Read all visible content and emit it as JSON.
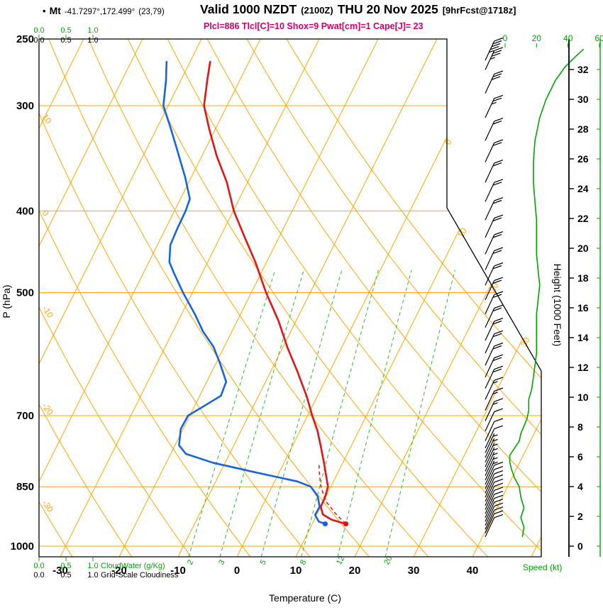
{
  "header": {
    "bullet": "•",
    "station": "Mt",
    "coords": "-41.7297°,172.499°",
    "grid": "(23,79)",
    "valid_main1": "Valid 1000 NZDT",
    "valid_zulu": "(2100Z)",
    "valid_main2": "THU 20 Nov 2025",
    "valid_fcst": "[9hrFcst@1718z]",
    "indices_line": "Plcl=886 Tlcl[C]=10 Shox=9 Pwat[cm]=1 Cape[J]= 23"
  },
  "axes": {
    "pressure": {
      "title": "P (hPa)",
      "ticks": [
        "250",
        "300",
        "400",
        "500",
        "700",
        "850",
        "1000"
      ]
    },
    "temperature": {
      "title": "Temperature (C)",
      "ticks": [
        "-30",
        "-20",
        "-10",
        "0",
        "10",
        "20",
        "30",
        "40"
      ]
    },
    "height": {
      "title": "Height (1000 Feet)",
      "ticks": [
        "0",
        "2",
        "4",
        "6",
        "8",
        "10",
        "12",
        "14",
        "16",
        "18",
        "20",
        "22",
        "24",
        "26",
        "28",
        "30",
        "32"
      ]
    },
    "speed": {
      "title": "Speed (kt)",
      "ticks": [
        "0",
        "20",
        "40",
        "60"
      ]
    },
    "cloudwater": {
      "title": "CloudWater (g/Kg)",
      "ticks": [
        "0.0",
        "0.5",
        "1.0"
      ]
    },
    "gridscale": {
      "title": "Grid-Scale Cloudiness",
      "ticks": [
        "0.0",
        "0.5",
        "1.0"
      ]
    }
  },
  "grid_labels": {
    "adiabats_left": [
      "10",
      "0",
      "-10",
      "-20",
      "-30"
    ],
    "isotherms_right": [
      "0",
      "10",
      "20",
      "30"
    ],
    "mixing_ratio": [
      "2",
      "3",
      "5",
      "8",
      "12",
      "20"
    ]
  },
  "colors": {
    "grid_orange": "#ffa500",
    "green": "#00a400",
    "mixing_green": "#2eb82e",
    "temperature_red": "#e31414",
    "dewpoint_blue": "#1565e0",
    "indices_magenta": "#cc0066",
    "black": "#000000"
  },
  "chart_data": {
    "type": "skewt-sounding",
    "station": "Mt -41.7297°,172.499° (23,79)",
    "valid": "Valid 1000 NZDT (2100Z) THU 20 Nov 2025 [9hrFcst@1718z]",
    "indices": {
      "Plcl_hPa": 886,
      "Tlcl_C": 10,
      "Showalter": 9,
      "Pwat_cm": 1,
      "Cape_J": 23
    },
    "pressure_top_hPa": 250,
    "pressure_bottom_hPa": 1030,
    "temp_axis_range_C": [
      -30,
      40
    ],
    "height_axis_range_kft": [
      0,
      32
    ],
    "speed_axis_range_kt": [
      0,
      60
    ],
    "temperature_profile": [
      [
        266,
        -46.6
      ],
      [
        280,
        -45.5
      ],
      [
        300,
        -43.9
      ],
      [
        320,
        -41.0
      ],
      [
        344,
        -37.5
      ],
      [
        370,
        -33.5
      ],
      [
        400,
        -29.9
      ],
      [
        430,
        -25.8
      ],
      [
        460,
        -21.9
      ],
      [
        500,
        -17.5
      ],
      [
        540,
        -13.0
      ],
      [
        581,
        -9.2
      ],
      [
        620,
        -5.5
      ],
      [
        665,
        -1.7
      ],
      [
        700,
        0.8
      ],
      [
        730,
        3.0
      ],
      [
        762,
        4.9
      ],
      [
        800,
        7.0
      ],
      [
        850,
        9.5
      ],
      [
        875,
        9.9
      ],
      [
        898,
        10.0
      ],
      [
        917,
        11.0
      ],
      [
        930,
        12.9
      ],
      [
        941,
        15.7
      ]
    ],
    "dewpoint_profile": [
      [
        266,
        -54.0
      ],
      [
        280,
        -52.5
      ],
      [
        300,
        -50.8
      ],
      [
        320,
        -47.5
      ],
      [
        340,
        -44.5
      ],
      [
        365,
        -41.0
      ],
      [
        387,
        -38.4
      ],
      [
        400,
        -38.1
      ],
      [
        420,
        -38.0
      ],
      [
        439,
        -37.8
      ],
      [
        460,
        -36.5
      ],
      [
        474,
        -34.8
      ],
      [
        500,
        -31.6
      ],
      [
        530,
        -27.8
      ],
      [
        556,
        -24.9
      ],
      [
        580,
        -21.8
      ],
      [
        608,
        -19.2
      ],
      [
        638,
        -16.7
      ],
      [
        663,
        -16.4
      ],
      [
        679,
        -18.1
      ],
      [
        700,
        -20.3
      ],
      [
        726,
        -20.4
      ],
      [
        759,
        -19.3
      ],
      [
        777,
        -17.4
      ],
      [
        796,
        -12.1
      ],
      [
        817,
        -4.1
      ],
      [
        838,
        3.9
      ],
      [
        850,
        6.6
      ],
      [
        873,
        8.6
      ],
      [
        898,
        9.8
      ],
      [
        918,
        9.7
      ],
      [
        935,
        10.9
      ],
      [
        941,
        12.2
      ]
    ],
    "parcel_path": [
      [
        941,
        15.7
      ],
      [
        928,
        14.4
      ],
      [
        914,
        13.0
      ],
      [
        900,
        11.8
      ],
      [
        886,
        10.5
      ],
      [
        872,
        9.6
      ],
      [
        858,
        8.8
      ],
      [
        844,
        8.0
      ],
      [
        830,
        7.4
      ],
      [
        815,
        6.7
      ],
      [
        800,
        6.1
      ]
    ],
    "wind_barbs": [
      [
        265,
        45
      ],
      [
        272,
        35
      ],
      [
        290,
        30
      ],
      [
        310,
        25
      ],
      [
        330,
        20
      ],
      [
        350,
        18
      ],
      [
        370,
        18
      ],
      [
        390,
        18
      ],
      [
        410,
        20
      ],
      [
        430,
        20
      ],
      [
        450,
        20
      ],
      [
        470,
        20
      ],
      [
        490,
        22
      ],
      [
        510,
        20
      ],
      [
        530,
        20
      ],
      [
        550,
        20
      ],
      [
        570,
        20
      ],
      [
        590,
        20
      ],
      [
        610,
        20
      ],
      [
        630,
        18
      ],
      [
        650,
        18
      ],
      [
        670,
        15
      ],
      [
        690,
        15
      ],
      [
        710,
        15
      ],
      [
        730,
        12
      ],
      [
        750,
        10
      ],
      [
        765,
        8
      ],
      [
        775,
        5
      ],
      [
        785,
        5
      ],
      [
        795,
        5
      ],
      [
        805,
        5
      ],
      [
        815,
        5
      ],
      [
        825,
        5
      ],
      [
        835,
        5
      ],
      [
        845,
        8
      ],
      [
        855,
        8
      ],
      [
        865,
        8
      ],
      [
        875,
        10
      ],
      [
        885,
        10
      ],
      [
        895,
        12
      ],
      [
        905,
        12
      ],
      [
        915,
        10
      ],
      [
        925,
        10
      ],
      [
        935,
        10
      ],
      [
        945,
        12
      ],
      [
        955,
        12
      ],
      [
        965,
        12
      ],
      [
        975,
        10
      ]
    ],
    "speed_profile": [
      [
        975,
        11
      ],
      [
        950,
        12
      ],
      [
        925,
        10
      ],
      [
        900,
        12
      ],
      [
        875,
        10
      ],
      [
        850,
        9
      ],
      [
        830,
        6
      ],
      [
        810,
        4
      ],
      [
        795,
        3
      ],
      [
        780,
        3
      ],
      [
        765,
        6
      ],
      [
        750,
        9
      ],
      [
        735,
        10
      ],
      [
        720,
        12
      ],
      [
        705,
        14
      ],
      [
        690,
        15
      ],
      [
        670,
        15
      ],
      [
        650,
        17
      ],
      [
        630,
        18
      ],
      [
        610,
        19
      ],
      [
        590,
        20
      ],
      [
        570,
        20
      ],
      [
        550,
        20
      ],
      [
        530,
        20
      ],
      [
        510,
        21
      ],
      [
        490,
        22
      ],
      [
        470,
        21
      ],
      [
        450,
        20
      ],
      [
        430,
        20
      ],
      [
        410,
        20
      ],
      [
        390,
        19
      ],
      [
        370,
        18
      ],
      [
        350,
        18
      ],
      [
        330,
        19
      ],
      [
        310,
        22
      ],
      [
        295,
        26
      ],
      [
        280,
        32
      ],
      [
        270,
        38
      ],
      [
        262,
        45
      ],
      [
        257,
        50
      ]
    ]
  }
}
